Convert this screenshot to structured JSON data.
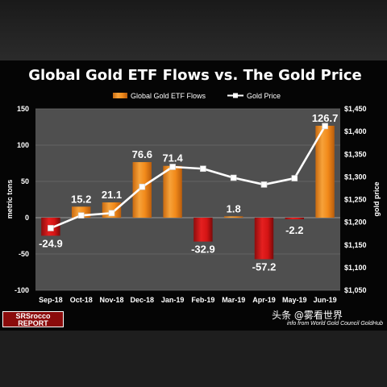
{
  "chart_data": {
    "type": "bar",
    "title": "Global Gold ETF Flows vs. The Gold Price",
    "categories": [
      "Sep-18",
      "Oct-18",
      "Nov-18",
      "Dec-18",
      "Jan-19",
      "Feb-19",
      "Mar-19",
      "Apr-19",
      "May-19",
      "Jun-19"
    ],
    "series": [
      {
        "name": "Global Gold ETF Flows",
        "kind": "bar",
        "axis": "left",
        "values": [
          -24.9,
          15.2,
          21.1,
          76.6,
          71.4,
          -32.9,
          1.8,
          -57.2,
          -2.2,
          126.7
        ],
        "data_labels": [
          "-24.9",
          "15.2",
          "21.1",
          "76.6",
          "71.4",
          "-32.9",
          "1.8",
          "-57.2",
          "-2.2",
          "126.7"
        ]
      },
      {
        "name": "Gold Price",
        "kind": "line",
        "axis": "right",
        "values": [
          1187,
          1215,
          1220,
          1278,
          1322,
          1318,
          1298,
          1283,
          1297,
          1412
        ]
      }
    ],
    "ylabel": "metric tons",
    "y2label": "gold price",
    "ylim": [
      -100,
      150
    ],
    "y2lim": [
      1050,
      1450
    ],
    "yticks": [
      "150",
      "100",
      "50",
      "0",
      "-50",
      "-100"
    ],
    "y2ticks": [
      "$1,450",
      "$1,400",
      "$1,350",
      "$1,300",
      "$1,250",
      "$1,200",
      "$1,150",
      "$1,100",
      "$1,050"
    ],
    "grid": true,
    "legend_position": "top-center",
    "colors": {
      "bar_positive": "#f28a1a",
      "bar_negative": "#d41414",
      "line": "#ffffff",
      "plot_background": "#4f4f4f"
    }
  },
  "branding": {
    "logo_top": "SRSrocco",
    "logo_bottom": "REPORT",
    "watermark": "头条 @雾看世界",
    "source_note": "info from World Gold Council GoldHub"
  }
}
